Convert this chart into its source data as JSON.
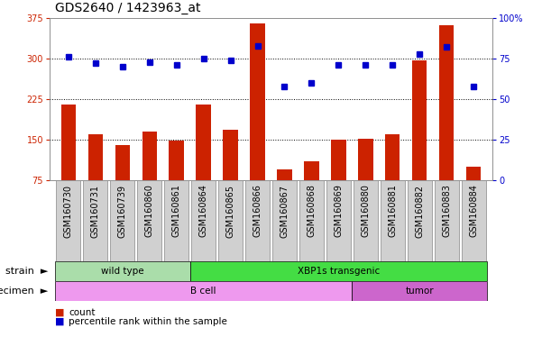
{
  "title": "GDS2640 / 1423963_at",
  "samples": [
    "GSM160730",
    "GSM160731",
    "GSM160739",
    "GSM160860",
    "GSM160861",
    "GSM160864",
    "GSM160865",
    "GSM160866",
    "GSM160867",
    "GSM160868",
    "GSM160869",
    "GSM160880",
    "GSM160881",
    "GSM160882",
    "GSM160883",
    "GSM160884"
  ],
  "counts": [
    215,
    160,
    140,
    165,
    148,
    215,
    168,
    365,
    95,
    110,
    150,
    152,
    160,
    297,
    362,
    100
  ],
  "percentiles": [
    76,
    72,
    70,
    73,
    71,
    75,
    74,
    83,
    58,
    60,
    71,
    71,
    71,
    78,
    82,
    58
  ],
  "ylim_left": [
    75,
    375
  ],
  "ylim_right": [
    0,
    100
  ],
  "yticks_left": [
    75,
    150,
    225,
    300,
    375
  ],
  "yticks_right": [
    0,
    25,
    50,
    75,
    100
  ],
  "bar_color": "#cc2200",
  "dot_color": "#0000cc",
  "plot_bg": "#ffffff",
  "strain_groups": [
    {
      "label": "wild type",
      "start": 0,
      "end": 4,
      "color": "#aaddaa"
    },
    {
      "label": "XBP1s transgenic",
      "start": 5,
      "end": 15,
      "color": "#44dd44"
    }
  ],
  "specimen_groups": [
    {
      "label": "B cell",
      "start": 0,
      "end": 10,
      "color": "#ee99ee"
    },
    {
      "label": "tumor",
      "start": 11,
      "end": 15,
      "color": "#cc66cc"
    }
  ],
  "strain_label": "strain",
  "specimen_label": "specimen",
  "legend_count_label": "count",
  "legend_pct_label": "percentile rank within the sample",
  "tick_fontsize": 7,
  "title_fontsize": 10,
  "bar_width": 0.55,
  "right_axis_label_color": "#0000cc",
  "left_axis_label_color": "#cc2200",
  "xtick_bg_color": "#d0d0d0"
}
